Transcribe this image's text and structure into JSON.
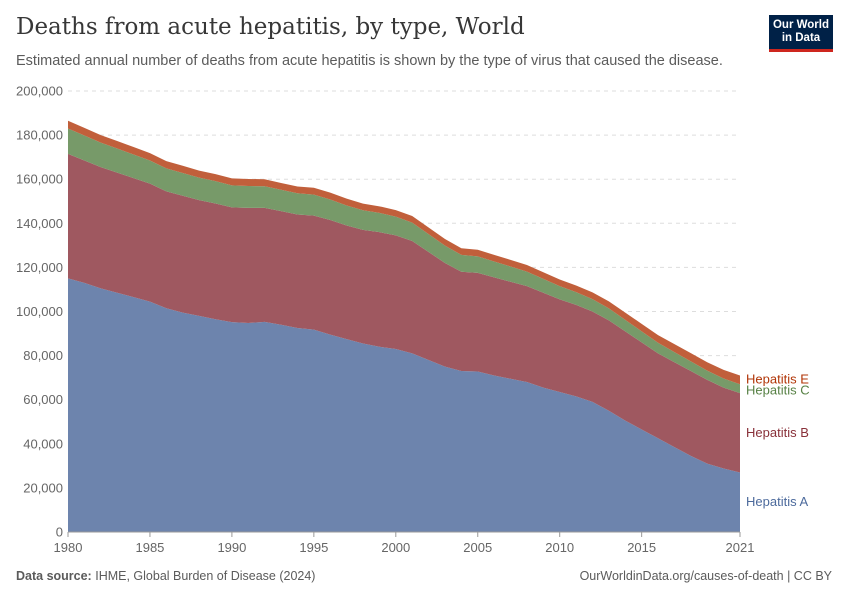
{
  "header": {
    "title": "Deaths from acute hepatitis, by type, World",
    "subtitle": "Estimated annual number of deaths from acute hepatitis is shown by the type of virus that caused the disease.",
    "logo": "Our World in Data"
  },
  "footer": {
    "source_label": "Data source:",
    "source": "IHME, Global Burden of Disease (2024)",
    "link": "OurWorldinData.org/causes-of-death | CC BY"
  },
  "chart_data": {
    "type": "area",
    "stacked": true,
    "title": "Deaths from acute hepatitis, by type, World",
    "xlabel": "",
    "ylabel": "",
    "ylim": [
      0,
      200000
    ],
    "xlim": [
      1980,
      2021
    ],
    "grid": "horizontal dashed",
    "legend": "right, inline labels",
    "yticks": [
      "0",
      "20,000",
      "40,000",
      "60,000",
      "80,000",
      "100,000",
      "120,000",
      "140,000",
      "160,000",
      "180,000",
      "200,000"
    ],
    "xticks": [
      "1980",
      "1985",
      "1990",
      "1995",
      "2000",
      "2005",
      "2010",
      "2015",
      "2021"
    ],
    "x": [
      1980,
      1981,
      1982,
      1983,
      1984,
      1985,
      1986,
      1987,
      1988,
      1989,
      1990,
      1991,
      1992,
      1993,
      1994,
      1995,
      1996,
      1997,
      1998,
      1999,
      2000,
      2001,
      2002,
      2003,
      2004,
      2005,
      2006,
      2007,
      2008,
      2009,
      2010,
      2011,
      2012,
      2013,
      2014,
      2015,
      2016,
      2017,
      2018,
      2019,
      2020,
      2021
    ],
    "series": [
      {
        "name": "Hepatitis A",
        "color": "#6d84ad",
        "values": [
          115000,
          113000,
          110500,
          108500,
          106500,
          104500,
          101500,
          99500,
          98000,
          96500,
          95200,
          94800,
          95300,
          94000,
          92500,
          91800,
          89500,
          87500,
          85500,
          84000,
          83000,
          81000,
          78000,
          75000,
          73000,
          72800,
          71000,
          69500,
          68000,
          65500,
          63500,
          61500,
          59000,
          55000,
          50500,
          46500,
          42500,
          38500,
          34500,
          31000,
          28800,
          27000
        ]
      },
      {
        "name": "Hepatitis B",
        "color": "#9f5860",
        "values": [
          56500,
          55500,
          55000,
          54500,
          54000,
          53500,
          53000,
          53000,
          52500,
          52500,
          52000,
          52200,
          51700,
          51500,
          51500,
          51700,
          52000,
          51500,
          51500,
          52000,
          51500,
          51000,
          49000,
          47000,
          45000,
          44700,
          44500,
          44000,
          43500,
          43000,
          42000,
          41500,
          41000,
          41000,
          40500,
          39500,
          38500,
          38500,
          38500,
          38000,
          36700,
          36000
        ]
      },
      {
        "name": "Hepatitis C",
        "color": "#779a69",
        "values": [
          11500,
          11300,
          11100,
          10900,
          10700,
          10500,
          10400,
          10300,
          10200,
          10100,
          10000,
          9900,
          9800,
          9700,
          9600,
          9500,
          9300,
          9100,
          8900,
          8700,
          8500,
          8300,
          8100,
          7900,
          7700,
          7500,
          7200,
          6900,
          6600,
          6300,
          6000,
          5800,
          5600,
          5400,
          5200,
          5000,
          4800,
          4600,
          4400,
          4200,
          4100,
          4000
        ]
      },
      {
        "name": "Hepatitis E",
        "color": "#c15f3b",
        "values": [
          3500,
          3500,
          3400,
          3400,
          3400,
          3300,
          3300,
          3300,
          3200,
          3200,
          3200,
          3200,
          3200,
          3100,
          3100,
          3100,
          3100,
          3100,
          3000,
          3000,
          3000,
          3000,
          3000,
          3000,
          3000,
          3000,
          3000,
          3000,
          3000,
          3000,
          3000,
          3000,
          3100,
          3200,
          3300,
          3400,
          3500,
          3600,
          3700,
          3800,
          3900,
          4000
        ]
      }
    ],
    "label_colors": {
      "Hepatitis A": "#4c6a9c",
      "Hepatitis B": "#883039",
      "Hepatitis C": "#578145",
      "Hepatitis E": "#b13507"
    }
  }
}
